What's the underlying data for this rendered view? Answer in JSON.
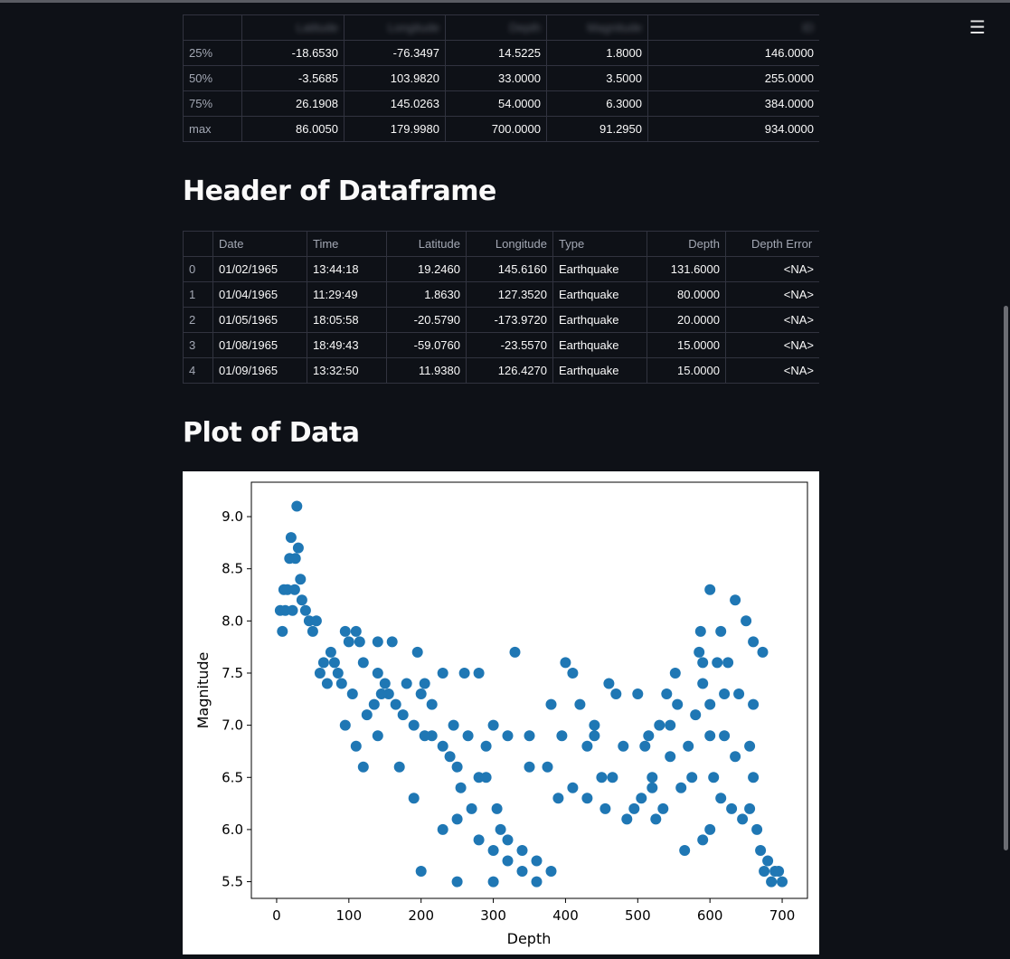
{
  "menu_icon": "hamburger-menu-icon",
  "stats_table": {
    "header": [
      "",
      "Latitude",
      "Longitude",
      "Depth",
      "Magnitude",
      "ID"
    ],
    "rows": [
      {
        "label": "25%",
        "values": [
          "-18.6530",
          "-76.3497",
          "14.5225",
          "1.8000",
          "146.0000"
        ]
      },
      {
        "label": "50%",
        "values": [
          "-3.5685",
          "103.9820",
          "33.0000",
          "3.5000",
          "255.0000"
        ]
      },
      {
        "label": "75%",
        "values": [
          "26.1908",
          "145.0263",
          "54.0000",
          "6.3000",
          "384.0000"
        ]
      },
      {
        "label": "max",
        "values": [
          "86.0050",
          "179.9980",
          "700.0000",
          "91.2950",
          "934.0000"
        ]
      }
    ]
  },
  "header_section": {
    "title": "Header of Dataframe",
    "columns": [
      "",
      "Date",
      "Time",
      "Latitude",
      "Longitude",
      "Type",
      "Depth",
      "Depth Error"
    ],
    "rows": [
      {
        "index": "0",
        "date": "01/02/1965",
        "time": "13:44:18",
        "latitude": "19.2460",
        "longitude": "145.6160",
        "type": "Earthquake",
        "depth": "131.6000",
        "depth_error": "<NA>"
      },
      {
        "index": "1",
        "date": "01/04/1965",
        "time": "11:29:49",
        "latitude": "1.8630",
        "longitude": "127.3520",
        "type": "Earthquake",
        "depth": "80.0000",
        "depth_error": "<NA>"
      },
      {
        "index": "2",
        "date": "01/05/1965",
        "time": "18:05:58",
        "latitude": "-20.5790",
        "longitude": "-173.9720",
        "type": "Earthquake",
        "depth": "20.0000",
        "depth_error": "<NA>"
      },
      {
        "index": "3",
        "date": "01/08/1965",
        "time": "18:49:43",
        "latitude": "-59.0760",
        "longitude": "-23.5570",
        "type": "Earthquake",
        "depth": "15.0000",
        "depth_error": "<NA>"
      },
      {
        "index": "4",
        "date": "01/09/1965",
        "time": "13:32:50",
        "latitude": "11.9380",
        "longitude": "126.4270",
        "type": "Earthquake",
        "depth": "15.0000",
        "depth_error": "<NA>"
      }
    ]
  },
  "plot_section": {
    "title": "Plot of Data"
  },
  "chart_data": {
    "type": "scatter",
    "xlabel": "Depth",
    "ylabel": "Magnitude",
    "xlim": [
      -35,
      735
    ],
    "ylim": [
      5.34,
      9.33
    ],
    "xticks": [
      0,
      100,
      200,
      300,
      400,
      500,
      600,
      700
    ],
    "yticks": [
      5.5,
      6.0,
      6.5,
      7.0,
      7.5,
      8.0,
      8.5,
      9.0
    ],
    "color": "#1f77b4",
    "series": [
      {
        "points": [
          [
            28,
            9.1
          ],
          [
            20,
            8.8
          ],
          [
            30,
            8.7
          ],
          [
            18,
            8.6
          ],
          [
            26,
            8.6
          ],
          [
            33,
            8.4
          ],
          [
            10,
            8.3
          ],
          [
            15,
            8.3
          ],
          [
            25,
            8.3
          ],
          [
            35,
            8.2
          ],
          [
            5,
            8.1
          ],
          [
            12,
            8.1
          ],
          [
            22,
            8.1
          ],
          [
            40,
            8.1
          ],
          [
            45,
            8.0
          ],
          [
            55,
            8.0
          ],
          [
            8,
            7.9
          ],
          [
            50,
            7.9
          ],
          [
            95,
            7.9
          ],
          [
            110,
            7.9
          ],
          [
            100,
            7.8
          ],
          [
            160,
            7.8
          ],
          [
            115,
            7.8
          ],
          [
            75,
            7.7
          ],
          [
            140,
            7.8
          ],
          [
            195,
            7.7
          ],
          [
            330,
            7.7
          ],
          [
            585,
            7.7
          ],
          [
            600,
            8.3
          ],
          [
            635,
            8.2
          ],
          [
            650,
            8.0
          ],
          [
            587,
            7.9
          ],
          [
            615,
            7.9
          ],
          [
            660,
            7.8
          ],
          [
            673,
            7.7
          ],
          [
            80,
            7.6
          ],
          [
            120,
            7.6
          ],
          [
            400,
            7.6
          ],
          [
            590,
            7.6
          ],
          [
            610,
            7.6
          ],
          [
            625,
            7.6
          ],
          [
            140,
            7.5
          ],
          [
            230,
            7.5
          ],
          [
            260,
            7.5
          ],
          [
            280,
            7.5
          ],
          [
            410,
            7.5
          ],
          [
            552,
            7.5
          ],
          [
            150,
            7.4
          ],
          [
            180,
            7.4
          ],
          [
            460,
            7.4
          ],
          [
            590,
            7.4
          ],
          [
            640,
            7.3
          ],
          [
            470,
            7.3
          ],
          [
            500,
            7.3
          ],
          [
            660,
            7.2
          ],
          [
            380,
            7.2
          ],
          [
            420,
            7.2
          ],
          [
            300,
            7.0
          ],
          [
            320,
            6.9
          ],
          [
            350,
            6.9
          ],
          [
            600,
            6.9
          ],
          [
            620,
            6.9
          ],
          [
            570,
            6.8
          ],
          [
            395,
            6.9
          ],
          [
            440,
            6.9
          ],
          [
            655,
            6.8
          ],
          [
            530,
            7.0
          ],
          [
            545,
            7.0
          ],
          [
            635,
            6.7
          ],
          [
            660,
            6.5
          ],
          [
            700,
            5.5
          ],
          [
            690,
            5.6
          ],
          [
            680,
            5.7
          ],
          [
            670,
            5.8
          ],
          [
            665,
            6.0
          ],
          [
            655,
            6.2
          ],
          [
            545,
            6.7
          ],
          [
            430,
            6.8
          ],
          [
            480,
            6.8
          ],
          [
            510,
            6.8
          ],
          [
            350,
            6.6
          ],
          [
            375,
            6.6
          ],
          [
            450,
            6.5
          ],
          [
            465,
            6.5
          ],
          [
            520,
            6.5
          ],
          [
            280,
            6.5
          ],
          [
            290,
            6.5
          ],
          [
            255,
            6.4
          ],
          [
            250,
            6.6
          ],
          [
            240,
            6.7
          ],
          [
            230,
            6.8
          ],
          [
            215,
            6.9
          ],
          [
            205,
            6.9
          ],
          [
            190,
            7.0
          ],
          [
            175,
            7.1
          ],
          [
            165,
            7.2
          ],
          [
            155,
            7.3
          ],
          [
            145,
            7.3
          ],
          [
            135,
            7.2
          ],
          [
            125,
            7.1
          ],
          [
            105,
            7.3
          ],
          [
            90,
            7.4
          ],
          [
            70,
            7.4
          ],
          [
            60,
            7.5
          ],
          [
            65,
            7.6
          ],
          [
            85,
            7.5
          ],
          [
            200,
            7.3
          ],
          [
            205,
            7.4
          ],
          [
            215,
            7.2
          ],
          [
            245,
            7.0
          ],
          [
            265,
            6.9
          ],
          [
            290,
            6.8
          ],
          [
            305,
            6.2
          ],
          [
            310,
            6.0
          ],
          [
            320,
            5.9
          ],
          [
            340,
            5.8
          ],
          [
            360,
            5.7
          ],
          [
            380,
            5.6
          ],
          [
            300,
            5.5
          ],
          [
            390,
            6.3
          ],
          [
            410,
            6.4
          ],
          [
            520,
            6.4
          ],
          [
            560,
            6.4
          ],
          [
            575,
            6.5
          ],
          [
            605,
            6.5
          ],
          [
            615,
            6.3
          ],
          [
            630,
            6.2
          ],
          [
            645,
            6.1
          ],
          [
            675,
            5.6
          ],
          [
            685,
            5.5
          ],
          [
            695,
            5.6
          ],
          [
            580,
            7.1
          ],
          [
            600,
            7.2
          ],
          [
            620,
            7.3
          ],
          [
            555,
            7.2
          ],
          [
            540,
            7.3
          ],
          [
            515,
            6.9
          ],
          [
            440,
            7.0
          ],
          [
            430,
            6.3
          ],
          [
            455,
            6.2
          ],
          [
            485,
            6.1
          ],
          [
            495,
            6.2
          ],
          [
            505,
            6.3
          ],
          [
            525,
            6.1
          ],
          [
            535,
            6.2
          ],
          [
            565,
            5.8
          ],
          [
            590,
            5.9
          ],
          [
            600,
            6.0
          ],
          [
            230,
            6.0
          ],
          [
            250,
            6.1
          ],
          [
            270,
            6.2
          ],
          [
            280,
            5.9
          ],
          [
            300,
            5.8
          ],
          [
            320,
            5.7
          ],
          [
            340,
            5.6
          ],
          [
            360,
            5.5
          ],
          [
            250,
            5.5
          ],
          [
            200,
            5.6
          ],
          [
            190,
            6.3
          ],
          [
            170,
            6.6
          ],
          [
            140,
            6.9
          ],
          [
            120,
            6.6
          ],
          [
            110,
            6.8
          ],
          [
            95,
            7.0
          ]
        ]
      }
    ]
  }
}
